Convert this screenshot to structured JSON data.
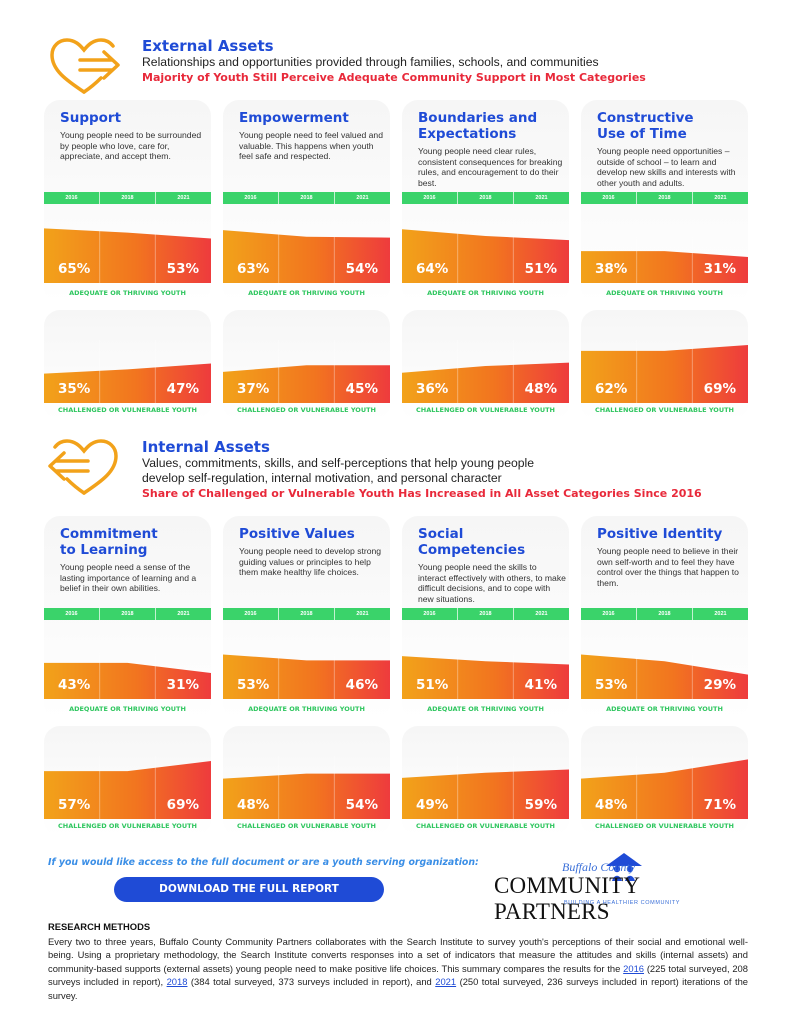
{
  "external": {
    "title": "External Assets",
    "description": "Relationships and opportunities provided through families, schools, and communities",
    "highlight": "Majority of Youth Still Perceive Adequate Community Support in Most Categories",
    "icon": "heart-arrow-right-icon"
  },
  "internal": {
    "title": "Internal Assets",
    "description_line1": "Values, commitments, skills, and self-perceptions that help young people",
    "description_line2": "develop self-regulation, internal motivation, and personal character",
    "highlight": "Share of Challenged or Vulnerable Youth Has Increased in All Asset Categories Since 2016",
    "icon": "heart-arrow-left-icon"
  },
  "years": [
    "2016",
    "2018",
    "2021"
  ],
  "labels": {
    "adequate": "ADEQUATE OR THRIVING YOUTH",
    "challenged": "CHALLENGED OR VULNERABLE YOUTH"
  },
  "external_cards": [
    {
      "title_line1": "Support",
      "title_line2": "",
      "desc": "Young people need to be surrounded by people who love, care for, appreciate, and accept them.",
      "top_start": "65%",
      "top_end": "53%",
      "bot_start": "35%",
      "bot_end": "47%"
    },
    {
      "title_line1": "Empowerment",
      "title_line2": "",
      "desc": "Young people need to feel valued and valuable. This happens when youth feel safe and respected.",
      "top_start": "63%",
      "top_end": "54%",
      "bot_start": "37%",
      "bot_end": "45%"
    },
    {
      "title_line1": "Boundaries and",
      "title_line2": "Expectations",
      "desc": "Young people need clear rules, consistent consequences for breaking rules, and encouragement to do their best.",
      "top_start": "64%",
      "top_end": "51%",
      "bot_start": "36%",
      "bot_end": "48%"
    },
    {
      "title_line1": "Constructive",
      "title_line2": "Use of Time",
      "desc": "Young people need opportunities – outside of school – to learn and develop new skills and interests with other youth and adults.",
      "top_start": "38%",
      "top_end": "31%",
      "bot_start": "62%",
      "bot_end": "69%"
    }
  ],
  "internal_cards": [
    {
      "title_line1": "Commitment",
      "title_line2": "to Learning",
      "desc": "Young people need a sense of the lasting importance of learning and a belief in their own abilities.",
      "top_start": "43%",
      "top_end": "31%",
      "bot_start": "57%",
      "bot_end": "69%"
    },
    {
      "title_line1": "Positive Values",
      "title_line2": "",
      "desc": "Young people need to develop strong guiding values or principles to help them make healthy life choices.",
      "top_start": "53%",
      "top_end": "46%",
      "bot_start": "48%",
      "bot_end": "54%"
    },
    {
      "title_line1": "Social",
      "title_line2": "Competencies",
      "desc": "Young people need the skills to interact effectively with others, to make difficult decisions, and to cope with new situations.",
      "top_start": "51%",
      "top_end": "41%",
      "bot_start": "49%",
      "bot_end": "59%"
    },
    {
      "title_line1": "Positive Identity",
      "title_line2": "",
      "desc": "Young people need to believe in their own self-worth and to feel they have control over the things that happen to them.",
      "top_start": "53%",
      "top_end": "29%",
      "bot_start": "48%",
      "bot_end": "71%"
    }
  ],
  "chart_data": [
    {
      "type": "area",
      "title": "Support",
      "x": [
        "2016",
        "2018",
        "2021"
      ],
      "series": [
        {
          "name": "ADEQUATE OR THRIVING YOUTH",
          "values": [
            65,
            60,
            53
          ]
        },
        {
          "name": "CHALLENGED OR VULNERABLE YOUTH",
          "values": [
            35,
            40,
            47
          ]
        }
      ]
    },
    {
      "type": "area",
      "title": "Empowerment",
      "x": [
        "2016",
        "2018",
        "2021"
      ],
      "series": [
        {
          "name": "ADEQUATE OR THRIVING YOUTH",
          "values": [
            63,
            55,
            54
          ]
        },
        {
          "name": "CHALLENGED OR VULNERABLE YOUTH",
          "values": [
            37,
            45,
            45
          ]
        }
      ]
    },
    {
      "type": "area",
      "title": "Boundaries and Expectations",
      "x": [
        "2016",
        "2018",
        "2021"
      ],
      "series": [
        {
          "name": "ADEQUATE OR THRIVING YOUTH",
          "values": [
            64,
            56,
            51
          ]
        },
        {
          "name": "CHALLENGED OR VULNERABLE YOUTH",
          "values": [
            36,
            44,
            48
          ]
        }
      ]
    },
    {
      "type": "area",
      "title": "Constructive Use of Time",
      "x": [
        "2016",
        "2018",
        "2021"
      ],
      "series": [
        {
          "name": "ADEQUATE OR THRIVING YOUTH",
          "values": [
            38,
            38,
            31
          ]
        },
        {
          "name": "CHALLENGED OR VULNERABLE YOUTH",
          "values": [
            62,
            62,
            69
          ]
        }
      ]
    },
    {
      "type": "area",
      "title": "Commitment to Learning",
      "x": [
        "2016",
        "2018",
        "2021"
      ],
      "series": [
        {
          "name": "ADEQUATE OR THRIVING YOUTH",
          "values": [
            43,
            43,
            31
          ]
        },
        {
          "name": "CHALLENGED OR VULNERABLE YOUTH",
          "values": [
            57,
            57,
            69
          ]
        }
      ]
    },
    {
      "type": "area",
      "title": "Positive Values",
      "x": [
        "2016",
        "2018",
        "2021"
      ],
      "series": [
        {
          "name": "ADEQUATE OR THRIVING YOUTH",
          "values": [
            53,
            46,
            46
          ]
        },
        {
          "name": "CHALLENGED OR VULNERABLE YOUTH",
          "values": [
            48,
            54,
            54
          ]
        }
      ]
    },
    {
      "type": "area",
      "title": "Social Competencies",
      "x": [
        "2016",
        "2018",
        "2021"
      ],
      "series": [
        {
          "name": "ADEQUATE OR THRIVING YOUTH",
          "values": [
            51,
            45,
            41
          ]
        },
        {
          "name": "CHALLENGED OR VULNERABLE YOUTH",
          "values": [
            49,
            55,
            59
          ]
        }
      ]
    },
    {
      "type": "area",
      "title": "Positive Identity",
      "x": [
        "2016",
        "2018",
        "2021"
      ],
      "series": [
        {
          "name": "ADEQUATE OR THRIVING YOUTH",
          "values": [
            53,
            45,
            29
          ]
        },
        {
          "name": "CHALLENGED OR VULNERABLE YOUTH",
          "values": [
            48,
            55,
            71
          ]
        }
      ]
    }
  ],
  "cta": {
    "prompt": "If you would like access to the full document or are a youth serving organization:",
    "button": "DOWNLOAD THE FULL REPORT"
  },
  "logo": {
    "small": "Buffalo County",
    "main": "COMMUNITY PARTNERS",
    "tagline": "BUILDING A HEALTHIER COMMUNITY"
  },
  "research": {
    "title": "RESEARCH METHODS",
    "body_part1": "Every two to three years, Buffalo County Community Partners collaborates with the Search Institute to survey youth's perceptions of their social and emotional well-being. Using a proprietary methodology, the Search Institute converts responses into a set of indicators that measure the attitudes and skills (internal assets) and community-based supports (external assets) young people need to make positive life choices. This summary compares the results for the ",
    "link_2016": "2016",
    "body_part2": " (225 total surveyed, 208 surveys included in report), ",
    "link_2018": "2018",
    "body_part3": " (384 total surveyed, 373 surveys included in report), and ",
    "link_2021": "2021",
    "body_part4": " (250 total surveyed, 236 surveys included in report) iterations of the survey."
  },
  "colors": {
    "blue": "#1f4bd6",
    "red": "#e8293a",
    "green": "#3ad36a",
    "orange": "#f2a21a"
  }
}
